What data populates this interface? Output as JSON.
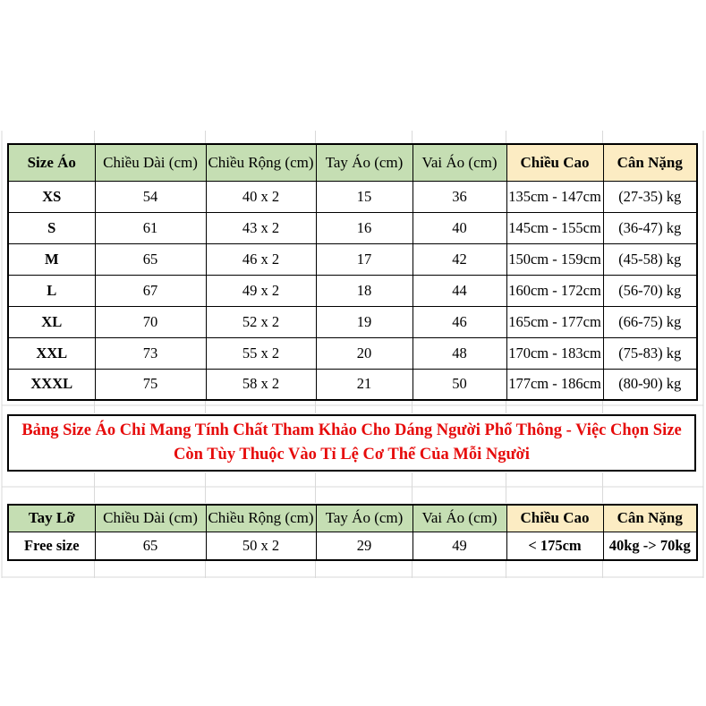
{
  "colors": {
    "background": "#ffffff",
    "header_green": "#c5deb3",
    "header_yellow": "#fcecc3",
    "border_black": "#000000",
    "notice_red": "#e60b0b",
    "gridline_gray": "#d9d9d9",
    "text_black": "#000000"
  },
  "main_table": {
    "columns": [
      "Size Áo",
      "Chiều Dài (cm)",
      "Chiều Rộng (cm)",
      "Tay Áo (cm)",
      "Vai Áo (cm)",
      "Chiều Cao",
      "Cân Nặng"
    ],
    "rows": [
      [
        "XS",
        "54",
        "40 x 2",
        "15",
        "36",
        "135cm - 147cm",
        "(27-35) kg"
      ],
      [
        "S",
        "61",
        "43 x 2",
        "16",
        "40",
        "145cm - 155cm",
        "(36-47) kg"
      ],
      [
        "M",
        "65",
        "46 x 2",
        "17",
        "42",
        "150cm - 159cm",
        "(45-58) kg"
      ],
      [
        "L",
        "67",
        "49 x 2",
        "18",
        "44",
        "160cm - 172cm",
        "(56-70) kg"
      ],
      [
        "XL",
        "70",
        "52 x 2",
        "19",
        "46",
        "165cm - 177cm",
        "(66-75) kg"
      ],
      [
        "XXL",
        "73",
        "55 x 2",
        "20",
        "48",
        "170cm - 183cm",
        "(75-83) kg"
      ],
      [
        "XXXL",
        "75",
        "58 x 2",
        "21",
        "50",
        "177cm - 186cm",
        "(80-90) kg"
      ]
    ]
  },
  "notice": {
    "lines": [
      "Bảng Size Áo Chỉ Mang Tính Chất Tham Khảo Cho Dáng Người Phổ Thông - Việc Chọn Size",
      "Còn Tùy Thuộc Vào Tỉ Lệ Cơ Thể Của Mỗi Người"
    ]
  },
  "secondary_table": {
    "columns": [
      "Tay Lỡ",
      "Chiều Dài (cm)",
      "Chiều Rộng (cm)",
      "Tay Áo (cm)",
      "Vai Áo (cm)",
      "Chiều Cao",
      "Cân Nặng"
    ],
    "rows": [
      [
        "Free size",
        "65",
        "50 x 2",
        "29",
        "49",
        "< 175cm",
        "40kg -> 70kg"
      ]
    ]
  }
}
